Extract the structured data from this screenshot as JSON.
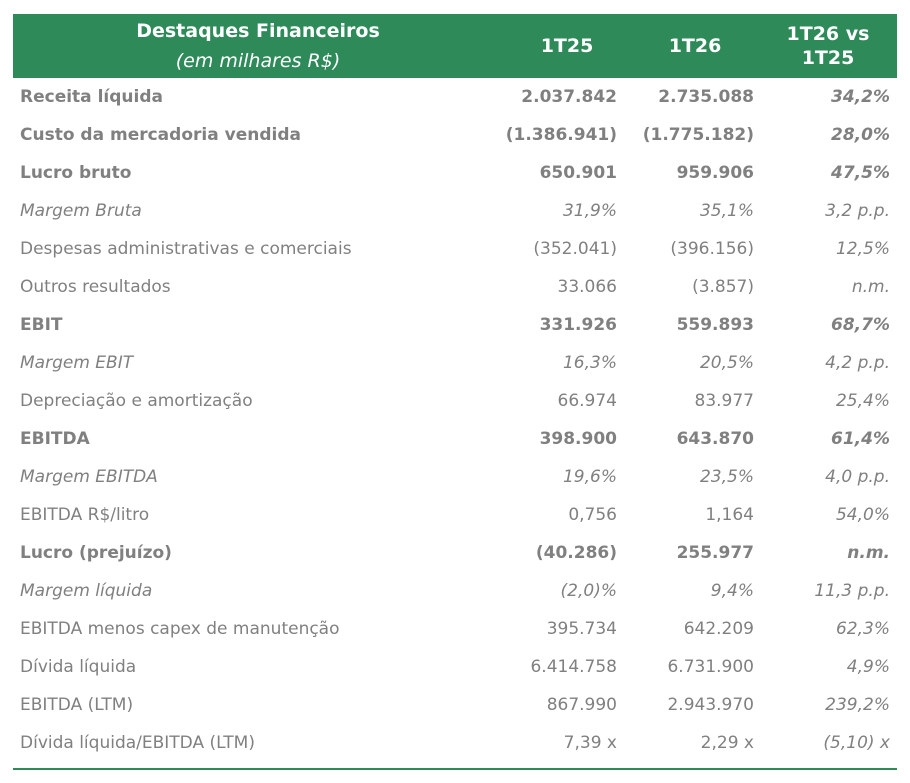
{
  "header": {
    "title": "Destaques Financeiros",
    "subtitle": "(em milhares R$)",
    "col1": "1T25",
    "col2": "1T26",
    "col3_line1": "1T26 vs",
    "col3_line2": "1T25"
  },
  "rows": [
    {
      "label": "Receita líquida",
      "v1": "2.037.842",
      "v2": "2.735.088",
      "v3": "34,2%",
      "style": "bold"
    },
    {
      "label": "Custo da mercadoria vendida",
      "v1": "(1.386.941)",
      "v2": "(1.775.182)",
      "v3": "28,0%",
      "style": "bold"
    },
    {
      "label": "Lucro bruto",
      "v1": "650.901",
      "v2": "959.906",
      "v3": "47,5%",
      "style": "bold"
    },
    {
      "label": "Margem Bruta",
      "v1": "31,9%",
      "v2": "35,1%",
      "v3": "3,2 p.p.",
      "style": "italic"
    },
    {
      "label": "Despesas administrativas e comerciais",
      "v1": "(352.041)",
      "v2": "(396.156)",
      "v3": "12,5%",
      "style": "normal"
    },
    {
      "label": "Outros resultados",
      "v1": "33.066",
      "v2": "(3.857)",
      "v3": "n.m.",
      "style": "normal"
    },
    {
      "label": "EBIT",
      "v1": "331.926",
      "v2": "559.893",
      "v3": "68,7%",
      "style": "bold"
    },
    {
      "label": "Margem EBIT",
      "v1": "16,3%",
      "v2": "20,5%",
      "v3": "4,2 p.p.",
      "style": "italic"
    },
    {
      "label": "Depreciação e amortização",
      "v1": "66.974",
      "v2": "83.977",
      "v3": "25,4%",
      "style": "normal"
    },
    {
      "label": "EBITDA",
      "v1": "398.900",
      "v2": "643.870",
      "v3": "61,4%",
      "style": "bold"
    },
    {
      "label": "Margem EBITDA",
      "v1": "19,6%",
      "v2": "23,5%",
      "v3": "4,0 p.p.",
      "style": "italic"
    },
    {
      "label": "EBITDA R$/litro",
      "v1": "0,756",
      "v2": "1,164",
      "v3": "54,0%",
      "style": "normal"
    },
    {
      "label": "Lucro (prejuízo)",
      "v1": "(40.286)",
      "v2": "255.977",
      "v3": "n.m.",
      "style": "bold"
    },
    {
      "label": "Margem líquida",
      "v1": "(2,0)%",
      "v2": "9,4%",
      "v3": "11,3 p.p.",
      "style": "italic"
    },
    {
      "label": "EBITDA menos capex de manutenção",
      "v1": "395.734",
      "v2": "642.209",
      "v3": "62,3%",
      "style": "normal"
    },
    {
      "label": "Dívida líquida",
      "v1": "6.414.758",
      "v2": "6.731.900",
      "v3": "4,9%",
      "style": "normal"
    },
    {
      "label": "EBITDA (LTM)",
      "v1": "867.990",
      "v2": "2.943.970",
      "v3": "239,2%",
      "style": "normal"
    },
    {
      "label": "Dívida líquida/EBITDA (LTM)",
      "v1": "7,39 x",
      "v2": "2,29 x",
      "v3": "(5,10) x",
      "style": "normal"
    }
  ],
  "colors": {
    "header_bg": "#2f8a5a",
    "text": "#808080",
    "header_text": "#ffffff"
  }
}
